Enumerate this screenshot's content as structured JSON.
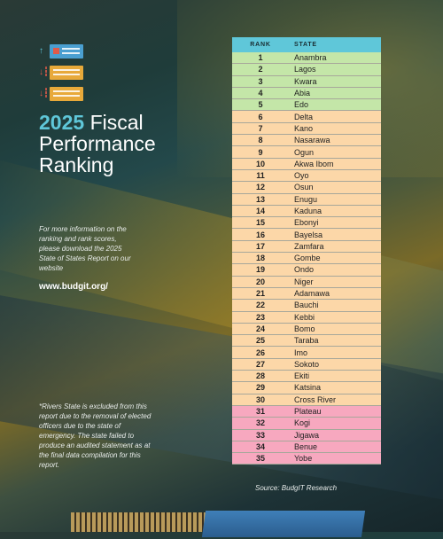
{
  "header": {
    "title_year": "2025",
    "title_rest": "Fiscal Performance Ranking"
  },
  "icons": [
    "up-arrow-icon",
    "document-icon",
    "down-arrow-icon"
  ],
  "info_text": "For more information on the ranking and rank scores, please download the 2025 State of States Report on our website",
  "website": "www.budgit.org/",
  "footnote": "*Rivers State is excluded from this report due to the removal of elected  officers due to the state of emergency. The state failed to produce an audited statement as at the final data compilation for this report.",
  "source": "Source: BudgIT Research",
  "colors": {
    "header": "#5fc7d9",
    "top": "#c4e6a8",
    "middle": "#fcd7a8",
    "bottom": "#f7a8bf"
  },
  "table": {
    "headers": {
      "rank": "RANK",
      "state": "STATE"
    },
    "rows": [
      {
        "rank": "1",
        "state": "Anambra",
        "band": "green"
      },
      {
        "rank": "2",
        "state": "Lagos",
        "band": "green"
      },
      {
        "rank": "3",
        "state": "Kwara",
        "band": "green"
      },
      {
        "rank": "4",
        "state": "Abia",
        "band": "green"
      },
      {
        "rank": "5",
        "state": "Edo",
        "band": "green"
      },
      {
        "rank": "6",
        "state": "Delta",
        "band": "peach"
      },
      {
        "rank": "7",
        "state": "Kano",
        "band": "peach"
      },
      {
        "rank": "8",
        "state": "Nasarawa",
        "band": "peach"
      },
      {
        "rank": "9",
        "state": "Ogun",
        "band": "peach"
      },
      {
        "rank": "10",
        "state": "Akwa Ibom",
        "band": "peach"
      },
      {
        "rank": "11",
        "state": "Oyo",
        "band": "peach"
      },
      {
        "rank": "12",
        "state": "Osun",
        "band": "peach"
      },
      {
        "rank": "13",
        "state": "Enugu",
        "band": "peach"
      },
      {
        "rank": "14",
        "state": "Kaduna",
        "band": "peach"
      },
      {
        "rank": "15",
        "state": "Ebonyi",
        "band": "peach"
      },
      {
        "rank": "16",
        "state": "Bayelsa",
        "band": "peach"
      },
      {
        "rank": "17",
        "state": "Zamfara",
        "band": "peach"
      },
      {
        "rank": "18",
        "state": "Gombe",
        "band": "peach"
      },
      {
        "rank": "19",
        "state": "Ondo",
        "band": "peach"
      },
      {
        "rank": "20",
        "state": "Niger",
        "band": "peach"
      },
      {
        "rank": "21",
        "state": "Adamawa",
        "band": "peach"
      },
      {
        "rank": "22",
        "state": "Bauchi",
        "band": "peach"
      },
      {
        "rank": "23",
        "state": "Kebbi",
        "band": "peach"
      },
      {
        "rank": "24",
        "state": "Bomo",
        "band": "peach"
      },
      {
        "rank": "25",
        "state": "Taraba",
        "band": "peach"
      },
      {
        "rank": "26",
        "state": "Imo",
        "band": "peach"
      },
      {
        "rank": "27",
        "state": "Sokoto",
        "band": "peach"
      },
      {
        "rank": "28",
        "state": "Ekiti",
        "band": "peach"
      },
      {
        "rank": "29",
        "state": "Katsina",
        "band": "peach"
      },
      {
        "rank": "30",
        "state": "Cross River",
        "band": "peach"
      },
      {
        "rank": "31",
        "state": "Plateau",
        "band": "pink"
      },
      {
        "rank": "32",
        "state": "Kogi",
        "band": "pink"
      },
      {
        "rank": "33",
        "state": "Jigawa",
        "band": "pink"
      },
      {
        "rank": "34",
        "state": "Benue",
        "band": "pink"
      },
      {
        "rank": "35",
        "state": "Yobe",
        "band": "pink"
      }
    ]
  }
}
